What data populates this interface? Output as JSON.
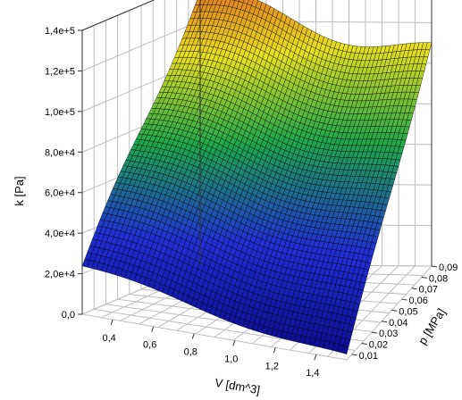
{
  "chart_data": {
    "type": "surface3d",
    "title": "",
    "xlabel": "V [dm^3]",
    "ylabel": "p [MPa]",
    "zlabel": "k [Pa]",
    "x_ticks": [
      "0,4",
      "0,6",
      "0,8",
      "1,0",
      "1,2",
      "1,4"
    ],
    "y_ticks": [
      "0,01",
      "0,02",
      "0,03",
      "0,04",
      "0,05",
      "0,06",
      "0,07",
      "0,08",
      "0,09"
    ],
    "z_ticks": [
      "0,0",
      "2,0e+4",
      "4,0e+4",
      "6,0e+4",
      "8,0e+4",
      "1,0e+5",
      "1,2e+5",
      "1,4e+5"
    ],
    "xlim": [
      0.25,
      1.55
    ],
    "ylim": [
      0.005,
      0.09
    ],
    "zlim": [
      0,
      140000
    ],
    "colormap": [
      "#0a0a8c",
      "#1f2fd6",
      "#1ea84a",
      "#e8e020",
      "#e07820"
    ],
    "corner_values": [
      {
        "V": 0.25,
        "p": 0.005,
        "k": 23000
      },
      {
        "V": 1.55,
        "p": 0.005,
        "k": 1000
      },
      {
        "V": 0.25,
        "p": 0.09,
        "k": 132000
      },
      {
        "V": 1.55,
        "p": 0.09,
        "k": 105000
      }
    ],
    "grid": true
  }
}
